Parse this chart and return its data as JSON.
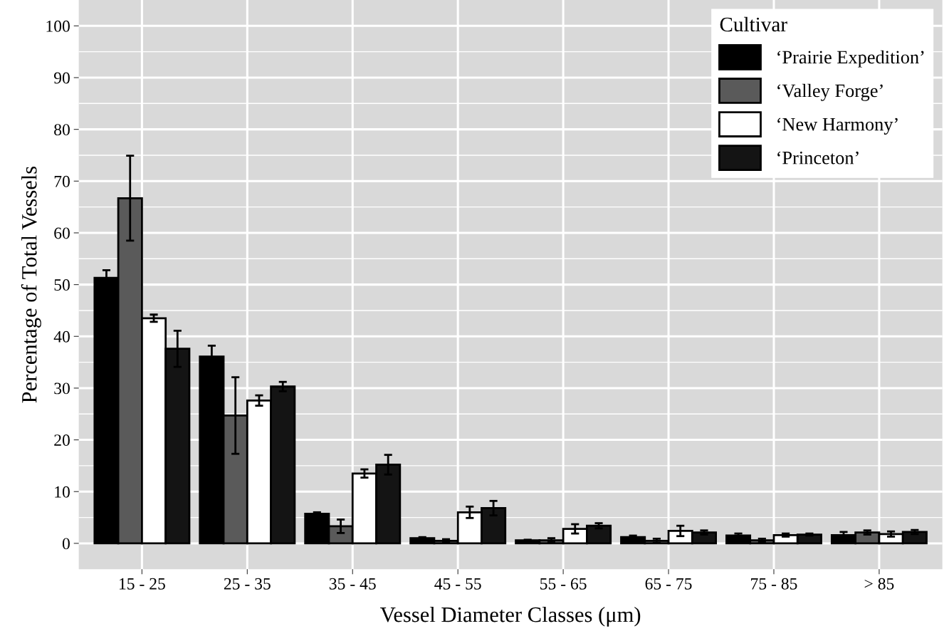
{
  "chart_data": {
    "type": "bar",
    "xlabel": "Vessel Diameter Classes (μm)",
    "ylabel": "Percentage of Total Vessels",
    "legend_title": "Cultivar",
    "legend": "top right",
    "grid": true,
    "categories": [
      "15 - 25",
      "25 - 35",
      "35 - 45",
      "45 - 55",
      "55 - 65",
      "65 - 75",
      "75 - 85",
      "> 85"
    ],
    "ylim": [
      -5,
      105
    ],
    "yticks": [
      0,
      10,
      20,
      30,
      40,
      50,
      60,
      70,
      80,
      90,
      100
    ],
    "series": [
      {
        "name": "‘Prairie Expedition’",
        "color": "#000000",
        "values": [
          51.3,
          36.1,
          5.7,
          1.0,
          0.6,
          1.2,
          1.5,
          1.6
        ],
        "errors": [
          1.5,
          2.1,
          0.3,
          0.2,
          0.1,
          0.3,
          0.4,
          0.6
        ]
      },
      {
        "name": "‘Valley Forge’",
        "color": "#5a5a5a",
        "values": [
          66.7,
          24.7,
          3.3,
          0.5,
          0.6,
          0.5,
          0.6,
          2.1
        ],
        "errors": [
          8.2,
          7.4,
          1.3,
          0.3,
          0.4,
          0.4,
          0.3,
          0.4
        ]
      },
      {
        "name": "‘New Harmony’",
        "color": "#ffffff",
        "values": [
          43.5,
          27.6,
          13.5,
          6.0,
          2.8,
          2.4,
          1.6,
          1.8
        ],
        "errors": [
          0.7,
          1.0,
          0.8,
          1.1,
          0.9,
          1.0,
          0.3,
          0.5
        ]
      },
      {
        "name": "‘Princeton’",
        "color": "#141414",
        "values": [
          37.6,
          30.3,
          15.2,
          6.8,
          3.4,
          2.1,
          1.7,
          2.2
        ],
        "errors": [
          3.5,
          0.9,
          1.9,
          1.4,
          0.5,
          0.4,
          0.2,
          0.4
        ]
      }
    ]
  }
}
